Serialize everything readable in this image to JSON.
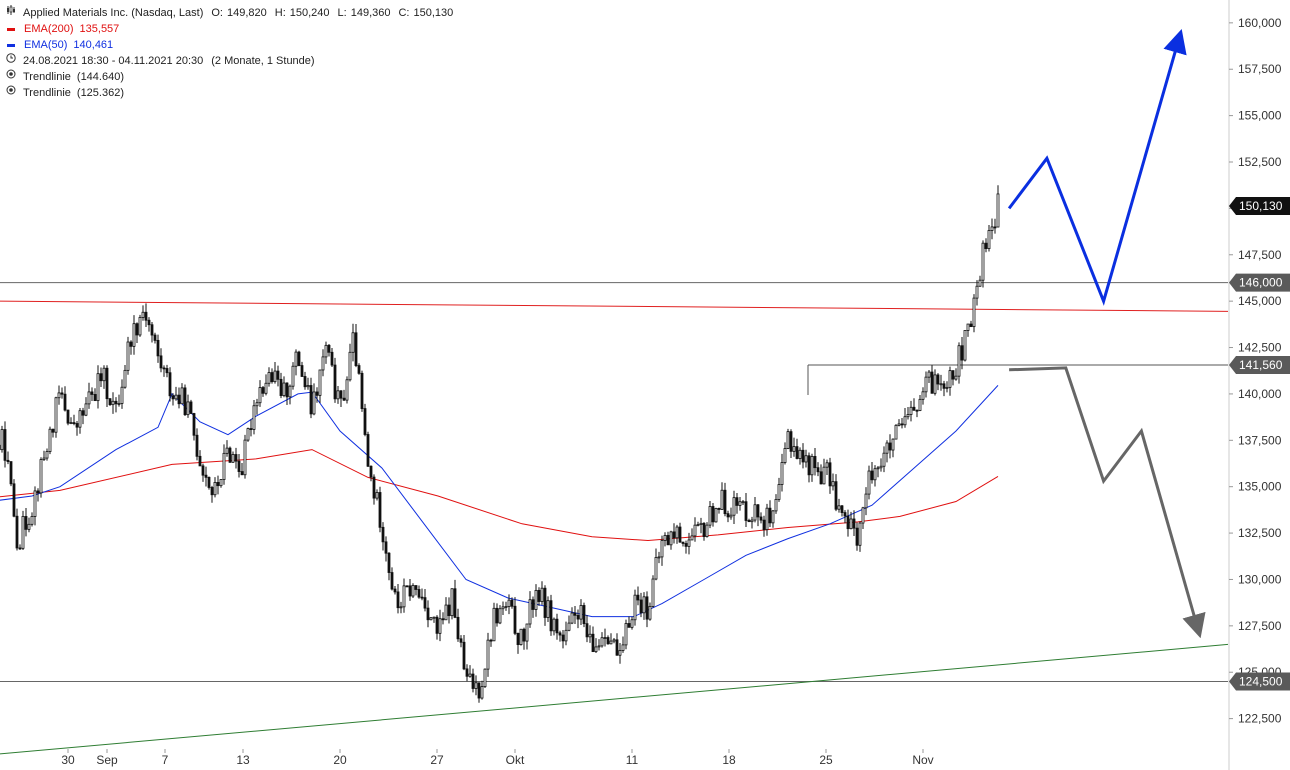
{
  "header": {
    "instrument": "Applied Materials Inc. (Nasdaq, Last)",
    "open_label": "O:",
    "open": "149,820",
    "high_label": "H:",
    "high": "150,240",
    "low_label": "L:",
    "low": "149,360",
    "close_label": "C:",
    "close": "150,130"
  },
  "legend": {
    "ema200": {
      "label": "EMA(200)",
      "value": "135,557",
      "color": "#e01010"
    },
    "ema50": {
      "label": "EMA(50)",
      "value": "140,461",
      "color": "#1030e0"
    },
    "range": {
      "icon": "clock-icon",
      "text": "24.08.2021 18:30 - 04.11.2021 20:30",
      "detail": "(2 Monate, 1 Stunde)"
    },
    "trend1": {
      "icon": "target-icon",
      "label": "Trendlinie",
      "value": "(144.640)"
    },
    "trend2": {
      "icon": "target-icon",
      "label": "Trendlinie",
      "value": "(125.362)"
    }
  },
  "chart_data": {
    "type": "candlestick",
    "x_labels": [
      "30",
      "Sep",
      "7",
      "13",
      "20",
      "27",
      "Okt",
      "11",
      "18",
      "25",
      "Nov"
    ],
    "y_ticks": [
      122500,
      125000,
      127500,
      130000,
      132500,
      135000,
      137500,
      140000,
      142500,
      145000,
      147500,
      150000,
      152500,
      155000,
      157500,
      160000
    ],
    "y_tick_labels": [
      "122,500",
      "125,000",
      "127,500",
      "130,000",
      "132,500",
      "135,000",
      "137,500",
      "140,000",
      "142,500",
      "145,000",
      "147,500",
      "150,000",
      "152,500",
      "155,000",
      "157,500",
      "160,000"
    ],
    "ylim": [
      120000,
      160800
    ],
    "price_path": [
      [
        0,
        131000
      ],
      [
        2,
        134000
      ],
      [
        4,
        133000
      ],
      [
        5,
        137500
      ],
      [
        6,
        136800
      ],
      [
        8,
        134500
      ],
      [
        10,
        135000
      ],
      [
        12,
        134000
      ],
      [
        13,
        133500
      ],
      [
        14,
        136000
      ],
      [
        16,
        137500
      ],
      [
        17,
        132000
      ],
      [
        18,
        134000
      ],
      [
        20,
        140000
      ],
      [
        21,
        138000
      ],
      [
        23,
        141000
      ],
      [
        24,
        139000
      ],
      [
        25,
        143000
      ],
      [
        26,
        144700
      ],
      [
        27,
        142000
      ],
      [
        28,
        140000
      ],
      [
        29,
        139500
      ],
      [
        30,
        136500
      ],
      [
        31,
        134500
      ],
      [
        32,
        137000
      ],
      [
        33,
        136000
      ],
      [
        34,
        140000
      ],
      [
        35,
        141000
      ],
      [
        36,
        140000
      ],
      [
        37,
        142000
      ],
      [
        38,
        139000
      ],
      [
        39,
        142500
      ],
      [
        40,
        139000
      ],
      [
        41,
        143000
      ],
      [
        42,
        136000
      ],
      [
        43,
        133000
      ],
      [
        44,
        128500
      ],
      [
        45,
        129500
      ],
      [
        46,
        129000
      ],
      [
        47,
        127000
      ],
      [
        48,
        129000
      ],
      [
        49,
        124500
      ],
      [
        50,
        124200
      ],
      [
        51,
        128000
      ],
      [
        52,
        128500
      ],
      [
        53,
        126500
      ],
      [
        54,
        129500
      ],
      [
        55,
        128000
      ],
      [
        56,
        126500
      ],
      [
        57,
        128500
      ],
      [
        58,
        126000
      ],
      [
        59,
        127500
      ],
      [
        60,
        125500
      ],
      [
        61,
        129000
      ],
      [
        62,
        128500
      ],
      [
        63,
        132000
      ],
      [
        64,
        132500
      ],
      [
        65,
        132000
      ],
      [
        66,
        132800
      ],
      [
        67,
        134200
      ],
      [
        68,
        134000
      ],
      [
        69,
        133800
      ],
      [
        70,
        133500
      ],
      [
        71,
        133000
      ],
      [
        72,
        137800
      ],
      [
        73,
        136500
      ],
      [
        74,
        136000
      ],
      [
        75,
        135500
      ],
      [
        76,
        133000
      ],
      [
        77,
        132500
      ],
      [
        78,
        136000
      ],
      [
        79,
        136700
      ],
      [
        80,
        138000
      ],
      [
        81,
        139000
      ],
      [
        82,
        140500
      ],
      [
        83,
        140800
      ],
      [
        84,
        141500
      ],
      [
        85,
        143500
      ],
      [
        86,
        148000
      ],
      [
        87,
        150130
      ]
    ],
    "ema50": [
      [
        0,
        130400
      ],
      [
        5,
        132500
      ],
      [
        10,
        133600
      ],
      [
        15,
        134200
      ],
      [
        18,
        134500
      ],
      [
        20,
        135000
      ],
      [
        24,
        137000
      ],
      [
        27,
        138200
      ],
      [
        28,
        140000
      ],
      [
        30,
        138500
      ],
      [
        32,
        137800
      ],
      [
        34,
        138800
      ],
      [
        37,
        140000
      ],
      [
        38,
        140100
      ],
      [
        40,
        138000
      ],
      [
        43,
        136000
      ],
      [
        46,
        133000
      ],
      [
        49,
        130000
      ],
      [
        52,
        129000
      ],
      [
        55,
        128500
      ],
      [
        58,
        128000
      ],
      [
        61,
        128000
      ],
      [
        63,
        128700
      ],
      [
        66,
        130000
      ],
      [
        69,
        131300
      ],
      [
        72,
        132200
      ],
      [
        75,
        133000
      ],
      [
        78,
        134000
      ],
      [
        81,
        136000
      ],
      [
        84,
        138000
      ],
      [
        87,
        140461
      ]
    ],
    "ema200": [
      [
        0,
        134000
      ],
      [
        10,
        134000
      ],
      [
        20,
        134800
      ],
      [
        28,
        136200
      ],
      [
        34,
        136500
      ],
      [
        38,
        137000
      ],
      [
        42,
        135500
      ],
      [
        47,
        134500
      ],
      [
        53,
        133000
      ],
      [
        58,
        132300
      ],
      [
        62,
        132100
      ],
      [
        67,
        132400
      ],
      [
        72,
        132800
      ],
      [
        77,
        133100
      ],
      [
        80,
        133400
      ],
      [
        84,
        134200
      ],
      [
        87,
        135557
      ]
    ],
    "horizontal_levels": [
      {
        "value": 146000,
        "label": "146,000"
      },
      {
        "value": 141560,
        "label": "141,560"
      },
      {
        "value": 124500,
        "label": "124,500"
      }
    ],
    "trendlines": [
      {
        "name": "Trendlinie",
        "value": 144640,
        "color": "#e02020",
        "from": 145000,
        "to": 144450
      },
      {
        "name": "Trendlinie",
        "value": 125362,
        "color": "#2e7d32",
        "from": 120600,
        "to": 126500
      }
    ],
    "last_price": {
      "value": 150130,
      "label": "150,130"
    },
    "scenario_bull": {
      "color": "#0a2fe0",
      "path": [
        [
          -1,
          150000
        ],
        [
          1,
          152700
        ],
        [
          4,
          145000
        ],
        [
          8,
          159200
        ]
      ]
    },
    "scenario_bear": {
      "color": "#666666",
      "path": [
        [
          -1,
          141300
        ],
        [
          2,
          141400
        ],
        [
          4,
          135300
        ],
        [
          6,
          138000
        ],
        [
          9,
          127300
        ]
      ]
    }
  }
}
